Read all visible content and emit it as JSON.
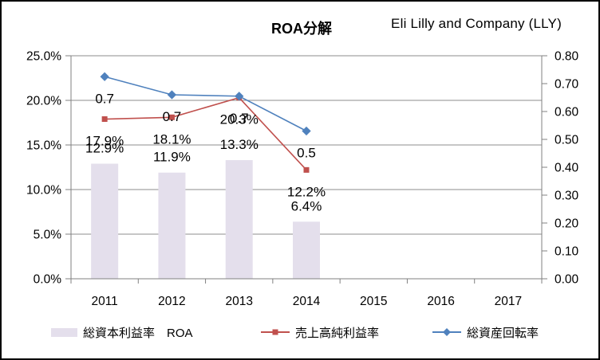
{
  "header": {
    "title": "ROA分解",
    "company": "Eli Lilly and Company (LLY)"
  },
  "chart_data": {
    "type": "bar",
    "subtype": "combo-bar-line-dual-axis",
    "title": "ROA分解",
    "annotation": "Eli Lilly and Company (LLY)",
    "categories": [
      "2011",
      "2012",
      "2013",
      "2014",
      "2015",
      "2016",
      "2017"
    ],
    "left_axis": {
      "min": 0,
      "max": 25,
      "step": 5,
      "unit": "%",
      "tick_labels": [
        "0.0%",
        "5.0%",
        "10.0%",
        "15.0%",
        "20.0%",
        "25.0%"
      ]
    },
    "right_axis": {
      "min": 0,
      "max": 0.8,
      "step": 0.1,
      "tick_labels": [
        "0.00",
        "0.10",
        "0.20",
        "0.30",
        "0.40",
        "0.50",
        "0.60",
        "0.70",
        "0.80"
      ]
    },
    "grid": true,
    "legend_position": "bottom",
    "series": [
      {
        "name": "総資本利益率　ROA",
        "type": "bar",
        "axis": "left",
        "color": "#E4DFEC",
        "values": [
          12.9,
          11.9,
          13.3,
          6.4,
          null,
          null,
          null
        ],
        "labels": [
          "12.9%",
          "11.9%",
          "13.3%",
          "6.4%",
          "",
          "",
          ""
        ]
      },
      {
        "name": "売上高純利益率",
        "type": "line",
        "axis": "left",
        "color": "#C0504D",
        "marker": "square",
        "values": [
          17.9,
          18.1,
          20.3,
          12.2,
          null,
          null,
          null
        ],
        "labels": [
          "17.9%",
          "18.1%",
          "20.3%",
          "12.2%",
          "",
          "",
          ""
        ]
      },
      {
        "name": "総資産回転率",
        "type": "line",
        "axis": "right",
        "color": "#4F81BD",
        "marker": "diamond",
        "values": [
          0.725,
          0.66,
          0.655,
          0.53,
          null,
          null,
          null
        ],
        "labels": [
          "0.7",
          "0.7",
          "0.7",
          "0.5",
          "",
          "",
          ""
        ]
      }
    ],
    "colors": {
      "bar_fill": "#E4DFEC",
      "line_red": "#C0504D",
      "line_blue": "#4F81BD",
      "gridline": "#8C8C8C",
      "axis": "#808080",
      "text": "#000000"
    }
  }
}
